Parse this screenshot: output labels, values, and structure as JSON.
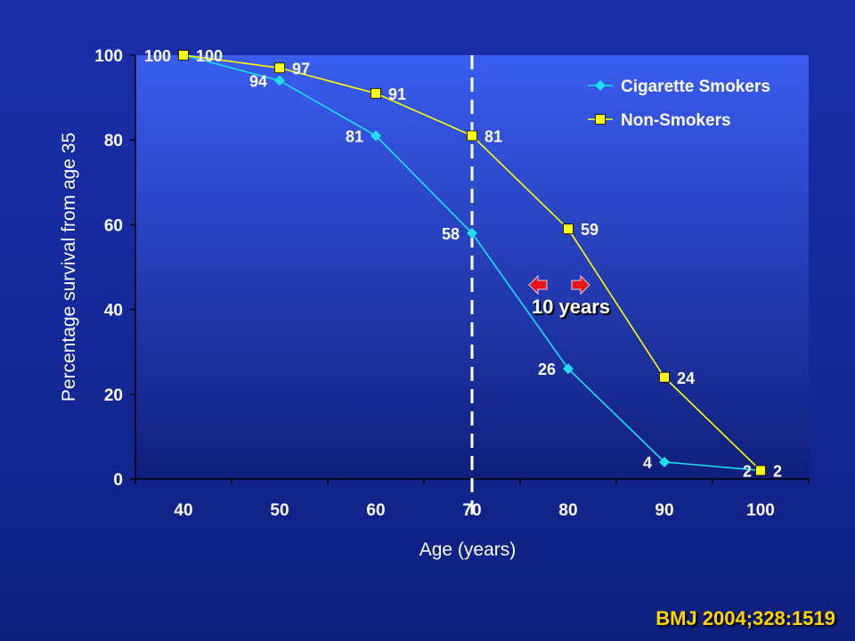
{
  "chart_data": {
    "type": "line",
    "x": [
      40,
      50,
      60,
      70,
      80,
      90,
      100
    ],
    "xlabel": "Age (years)",
    "ylabel": "Percentage survival from age 35",
    "ylim": [
      0,
      100
    ],
    "xticks": [
      "40",
      "50",
      "60",
      "70",
      "80",
      "90",
      "100"
    ],
    "yticks": [
      0,
      20,
      40,
      60,
      80,
      100
    ],
    "grid": false,
    "legend_position": "top-right",
    "series": [
      {
        "name": "Cigarette Smokers",
        "marker": "diamond",
        "color": "#1ee0f0",
        "values": [
          100,
          94,
          81,
          58,
          26,
          4,
          2
        ]
      },
      {
        "name": "Non-Smokers",
        "marker": "square",
        "color": "#ffff00",
        "values": [
          100,
          97,
          91,
          81,
          59,
          24,
          2
        ]
      }
    ],
    "reference_line_x": 70,
    "annotation": "10 years"
  },
  "citation": "BMJ 2004;328:1519",
  "colors": {
    "plot_top": "#3a5df0",
    "plot_bottom": "#101e7c",
    "arrow": "#e8141e",
    "citation": "#ffd400"
  }
}
